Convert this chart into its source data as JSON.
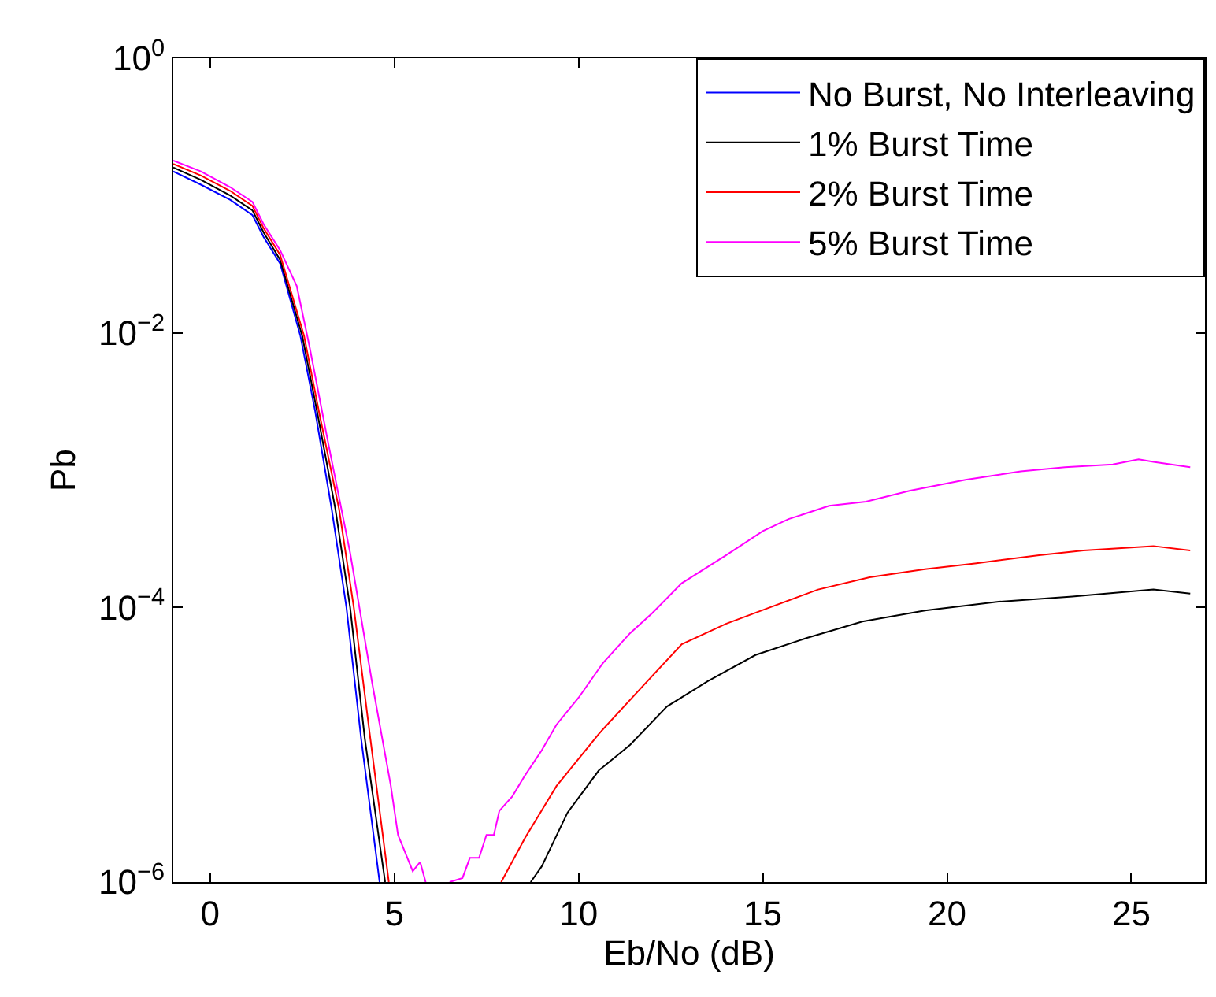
{
  "chart_data": {
    "type": "line",
    "xlabel": "Eb/No (dB)",
    "ylabel": "Pb",
    "log": "y",
    "legend": "top right",
    "marker": "none",
    "line_style": "solid",
    "xlim": [
      -1,
      27
    ],
    "xticks": [
      0,
      5,
      10,
      15,
      20,
      25
    ],
    "ylim": [
      1e-06,
      1
    ],
    "yticks": [
      {
        "value": 1,
        "label": "10$^{0}$"
      },
      {
        "value": 0.01,
        "label": "10$^{−2}$"
      },
      {
        "value": 0.0001,
        "label": "10$^{−4}$"
      },
      {
        "value": 1e-06,
        "label": "10$^{−6}$"
      }
    ],
    "series": [
      {
        "name": "No Burst, No Interleaving",
        "color": "#0000ff",
        "x": [
          -1,
          -0.25,
          0.55,
          1.15,
          1.45,
          1.9,
          2.45,
          2.85,
          3.3,
          3.7,
          4.1,
          4.6
        ],
        "values": [
          0.15,
          0.12,
          0.093,
          0.072,
          0.05,
          0.032,
          0.0095,
          0.0027,
          0.00052,
          0.0001,
          1.1e-05,
          1e-06
        ]
      },
      {
        "name": "1% Burst Time",
        "color": "#000000",
        "x": [
          -1,
          -0.25,
          0.55,
          1.15,
          1.45,
          1.9,
          2.5,
          2.9,
          3.4,
          3.8,
          4.2,
          4.75,
          6.5,
          8.7,
          9.0,
          9.7,
          10.55,
          11.4,
          12.4,
          13.5,
          14.8,
          16.2,
          17.7,
          19.4,
          21.4,
          23.4,
          25.6,
          26.6
        ],
        "values": [
          0.16,
          0.13,
          0.1,
          0.078,
          0.054,
          0.034,
          0.0095,
          0.0027,
          0.00052,
          0.0001,
          1.1e-05,
          1e-06,
          null,
          1e-06,
          1.3e-06,
          3.2e-06,
          6.5e-06,
          1e-05,
          1.9e-05,
          2.9e-05,
          4.5e-05,
          6e-05,
          7.9e-05,
          9.5e-05,
          0.00011,
          0.00012,
          0.000135,
          0.000126
        ]
      },
      {
        "name": "2% Burst Time",
        "color": "#ff0000",
        "x": [
          -1,
          -0.25,
          0.55,
          1.15,
          1.45,
          1.9,
          2.55,
          2.95,
          3.5,
          3.9,
          4.35,
          4.85,
          6.5,
          7.9,
          8.55,
          9.4,
          10.55,
          11.7,
          12.8,
          14.0,
          15.1,
          16.5,
          17.9,
          19.4,
          20.8,
          22.5,
          23.7,
          25.6,
          26.6
        ],
        "values": [
          0.17,
          0.14,
          0.108,
          0.084,
          0.058,
          0.037,
          0.0095,
          0.0027,
          0.00052,
          0.0001,
          1.1e-05,
          1e-06,
          null,
          1e-06,
          2.1e-06,
          5e-06,
          1.2e-05,
          2.6e-05,
          5.4e-05,
          7.6e-05,
          9.8e-05,
          0.000135,
          0.000166,
          0.00019,
          0.00021,
          0.00024,
          0.00026,
          0.00028,
          0.00026
        ]
      },
      {
        "name": "5% Burst Time",
        "color": "#ff00ff",
        "x": [
          -1,
          -0.25,
          0.55,
          1.15,
          1.45,
          1.9,
          2.35,
          2.7,
          3.2,
          3.8,
          4.4,
          4.9,
          5.1,
          5.5,
          5.7,
          5.85,
          6.2,
          6.5,
          6.85,
          7.05,
          7.3,
          7.5,
          7.7,
          7.85,
          8.2,
          8.55,
          9.0,
          9.4,
          10.0,
          10.65,
          11.4,
          12.0,
          12.8,
          14.0,
          15.0,
          15.7,
          16.8,
          17.8,
          19.0,
          20.5,
          22.0,
          23.2,
          24.5,
          25.2,
          25.6,
          26.6
        ],
        "values": [
          0.18,
          0.15,
          0.115,
          0.09,
          0.062,
          0.04,
          0.022,
          0.0079,
          0.0016,
          0.00025,
          2.8e-05,
          5.1e-06,
          2.2e-06,
          1.2e-06,
          1.4e-06,
          1e-06,
          null,
          1e-06,
          1.07e-06,
          1.5e-06,
          1.5e-06,
          2.2e-06,
          2.2e-06,
          3.3e-06,
          4.2e-06,
          6e-06,
          9.1e-06,
          1.4e-05,
          2.2e-05,
          3.9e-05,
          6.5e-05,
          9.1e-05,
          0.00015,
          0.00024,
          0.00036,
          0.00044,
          0.00055,
          0.00059,
          0.00071,
          0.00085,
          0.00098,
          0.00105,
          0.0011,
          0.0012,
          0.00115,
          0.00105
        ]
      }
    ]
  }
}
